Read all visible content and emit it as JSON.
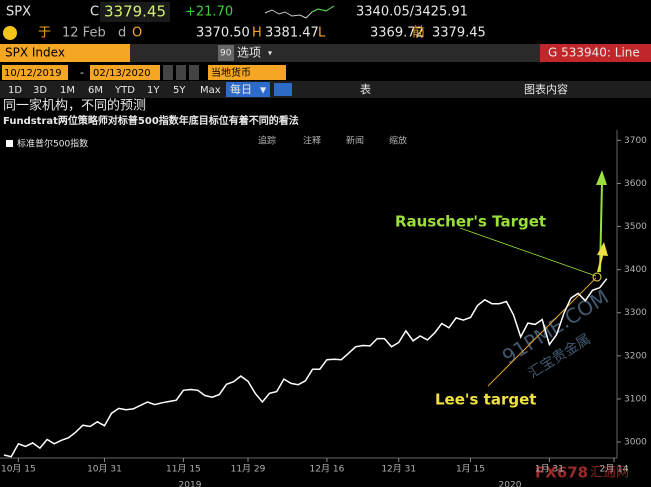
{
  "header": {
    "ticker": "SPX",
    "c_label": "C",
    "last": "3379.45",
    "change": "+21.70",
    "range": "3340.05/3425.91"
  },
  "quote": {
    "date_label": "于",
    "date": "12 Feb",
    "d": "d",
    "o_label": "O",
    "open": "3370.50",
    "h_label": "H",
    "high": "3381.47",
    "l_label": "L",
    "low": "3369.72",
    "prev_label": "前",
    "prev": "3379.45"
  },
  "toolbar": {
    "security": "SPX Index",
    "options_num": "90",
    "options": "选项",
    "page": "G 533940: Line"
  },
  "date_bar": {
    "start": "10/12/2019",
    "end": "02/13/2020",
    "currency": "当地货币"
  },
  "periods": [
    "1D",
    "3D",
    "1M",
    "6M",
    "YTD",
    "1Y",
    "5Y",
    "Max"
  ],
  "frequency": "每日",
  "table_button": "表",
  "chart_content": "图表内容",
  "chart_tools": [
    "追踪",
    "注释",
    "新闻",
    "缩放"
  ],
  "watermarks": [
    "91PME.COM",
    "汇宝贵金属",
    "FX678",
    "汇通网"
  ],
  "chart_data": {
    "type": "line",
    "title": "同一家机构，不同的预测",
    "subtitle": "Fundstrat两位策略师对标普500指数年底目标位有着不同的看法",
    "categories": [
      null,
      null,
      "10月 15",
      null,
      null,
      null,
      null,
      null,
      null,
      null,
      null,
      null,
      null,
      null,
      "10月 31",
      null,
      null,
      null,
      null,
      null,
      null,
      null,
      null,
      null,
      null,
      "11月 15",
      null,
      null,
      null,
      null,
      null,
      null,
      null,
      null,
      "11月 29",
      null,
      null,
      null,
      null,
      null,
      null,
      null,
      null,
      null,
      null,
      "12月 16",
      null,
      null,
      null,
      null,
      null,
      null,
      null,
      null,
      null,
      "12月 31",
      null,
      null,
      null,
      null,
      null,
      null,
      null,
      null,
      null,
      "1月 15",
      null,
      null,
      null,
      null,
      null,
      null,
      null,
      null,
      null,
      null,
      "1月 31",
      null,
      null,
      null,
      null,
      null,
      null,
      null,
      null,
      "2月 14"
    ],
    "year_labels": [
      "2019",
      "2020"
    ],
    "series": [
      {
        "name": "标准普尔500指数",
        "color": "#ffffff",
        "values": [
          2970,
          2966,
          2996,
          2990,
          2998,
          2986,
          3006,
          2996,
          3004,
          3010,
          3023,
          3039,
          3036,
          3047,
          3038,
          3067,
          3078,
          3075,
          3077,
          3085,
          3093,
          3087,
          3091,
          3094,
          3097,
          3120,
          3122,
          3120,
          3108,
          3104,
          3110,
          3134,
          3140,
          3153,
          3141,
          3113,
          3093,
          3113,
          3117,
          3146,
          3136,
          3133,
          3142,
          3169,
          3169,
          3191,
          3192,
          3191,
          3206,
          3221,
          3224,
          3223,
          3240,
          3240,
          3221,
          3231,
          3258,
          3235,
          3246,
          3237,
          3253,
          3275,
          3265,
          3288,
          3283,
          3289,
          3317,
          3330,
          3321,
          3321,
          3326,
          3295,
          3244,
          3276,
          3273,
          3284,
          3226,
          3249,
          3298,
          3334,
          3345,
          3328,
          3352,
          3358,
          3379,
          null
        ]
      }
    ],
    "ylim": [
      2963,
      3724
    ],
    "yticks": [
      3000,
      3100,
      3200,
      3300,
      3400,
      3500,
      3600,
      3700
    ],
    "annotations": [
      "Rauscher's Target",
      "Lee's target"
    ]
  }
}
